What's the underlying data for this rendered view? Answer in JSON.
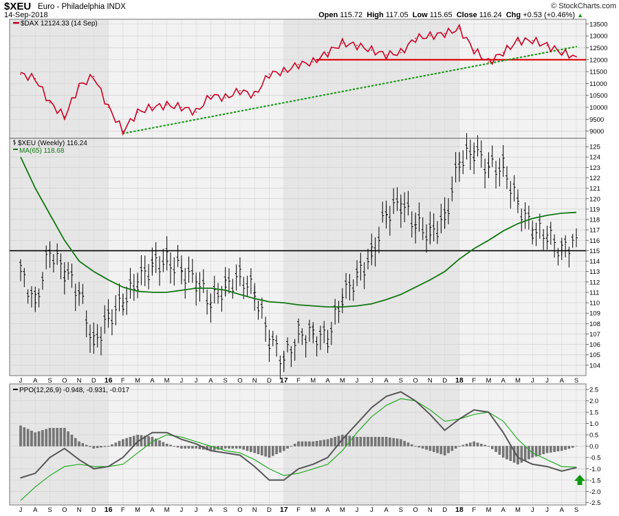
{
  "header": {
    "symbol": "$XEU",
    "name": "Euro - Philadelphia INDX",
    "date": "14-Sep-2018",
    "copyright": "© StockCharts.com",
    "open_label": "Open",
    "open": "115.72",
    "high_label": "High",
    "high": "117.05",
    "low_label": "Low",
    "low": "115.65",
    "close_label": "Close",
    "close": "116.24",
    "chg_label": "Chg",
    "chg": "+0.53 (+0.46%)",
    "chg_arrow": "▲"
  },
  "colors": {
    "dax_line": "#cc0022",
    "support_line": "#dd0000",
    "trend_dots": "#1a9a1a",
    "ma_line": "#117711",
    "price_bars": "#000000",
    "ppo_line": "#555555",
    "signal_line": "#22aa22",
    "histogram": "#777777",
    "arrow": "#119911",
    "panel_bg": "#f2f2f2",
    "shade_bg": "#e6e6e6"
  },
  "chart_data": [
    {
      "type": "line",
      "panel": "DAX",
      "legend": "$DAX 12124.33 (14 Sep)",
      "ylim": [
        8700,
        13700
      ],
      "yticks": [
        9000,
        9500,
        10000,
        10500,
        11000,
        11500,
        12000,
        12500,
        13000,
        13500
      ],
      "support_level": 12000,
      "trendline": {
        "from": [
          "Jan 2016",
          8900
        ],
        "to": [
          "Sep 2018",
          12550
        ],
        "style": "dotted"
      },
      "x": [
        "Jul 2015",
        "Aug 2015",
        "Sep 2015",
        "Oct 2015",
        "Nov 2015",
        "Dec 2015",
        "Jan 2016",
        "Feb 2016",
        "Mar 2016",
        "Apr 2016",
        "May 2016",
        "Jun 2016",
        "Jul 2016",
        "Aug 2016",
        "Sep 2016",
        "Oct 2016",
        "Nov 2016",
        "Dec 2016",
        "Jan 2017",
        "Feb 2017",
        "Mar 2017",
        "Apr 2017",
        "May 2017",
        "Jun 2017",
        "Jul 2017",
        "Aug 2017",
        "Sep 2017",
        "Oct 2017",
        "Nov 2017",
        "Dec 2017",
        "Jan 2018",
        "Feb 2018",
        "Mar 2018",
        "Apr 2018",
        "May 2018",
        "Jun 2018",
        "Jul 2018",
        "Aug 2018",
        "Sep 2018"
      ],
      "values": [
        11400,
        11200,
        10200,
        9600,
        10900,
        11300,
        10000,
        9000,
        9800,
        10000,
        10100,
        10000,
        9800,
        10500,
        10400,
        10700,
        10500,
        11400,
        11500,
        11800,
        11900,
        12300,
        12700,
        12600,
        12400,
        12200,
        12300,
        12900,
        13000,
        13100,
        13300,
        12400,
        11900,
        12300,
        12800,
        12800,
        12600,
        12300,
        12124
      ]
    },
    {
      "type": "bar",
      "panel": "XEU",
      "legend": "$XEU (Weekly) 116.24",
      "ma_legend": "MA(65) 118.68",
      "ylim": [
        103,
        125.8
      ],
      "yticks": [
        104,
        105,
        106,
        107,
        108,
        109,
        110,
        111,
        112,
        113,
        114,
        115,
        116,
        117,
        118,
        119,
        120,
        121,
        122,
        123,
        124,
        125
      ],
      "support_level": 115,
      "x": [
        "Jul 2015",
        "Aug 2015",
        "Sep 2015",
        "Oct 2015",
        "Nov 2015",
        "Dec 2015",
        "Jan 2016",
        "Feb 2016",
        "Mar 2016",
        "Apr 2016",
        "May 2016",
        "Jun 2016",
        "Jul 2016",
        "Aug 2016",
        "Sep 2016",
        "Oct 2016",
        "Nov 2016",
        "Dec 2016",
        "Jan 2017",
        "Feb 2017",
        "Mar 2017",
        "Apr 2017",
        "May 2017",
        "Jun 2017",
        "Jul 2017",
        "Aug 2017",
        "Sep 2017",
        "Oct 2017",
        "Nov 2017",
        "Dec 2017",
        "Jan 2018",
        "Feb 2018",
        "Mar 2018",
        "Apr 2018",
        "May 2018",
        "Jun 2018",
        "Jul 2018",
        "Aug 2018",
        "Sep 2018"
      ],
      "values": [
        113,
        110,
        115,
        113,
        111,
        106,
        108.5,
        110,
        112,
        113.5,
        114,
        113,
        112,
        110,
        111.5,
        112.5,
        111,
        106.5,
        104.5,
        107,
        107,
        106.5,
        110.5,
        112.5,
        114.5,
        118.5,
        119.5,
        117.5,
        116.5,
        118,
        123.5,
        124.5,
        123,
        123,
        119.5,
        117,
        116.5,
        115,
        116.24
      ],
      "ma_values": [
        124,
        121,
        118.5,
        116,
        114,
        113,
        112.2,
        111.5,
        111.1,
        111,
        111,
        111.2,
        111.4,
        111.4,
        111.2,
        110.8,
        110.4,
        110.1,
        110,
        109.8,
        109.7,
        109.6,
        109.6,
        109.7,
        109.9,
        110.3,
        110.8,
        111.5,
        112.2,
        113,
        114.2,
        115.2,
        116,
        116.9,
        117.6,
        118.1,
        118.4,
        118.6,
        118.68
      ]
    },
    {
      "type": "line",
      "panel": "PPO",
      "legend": "PPO(12,26,9) -0.948, -0.931, -0.017",
      "ylim": [
        -2.6,
        2.75
      ],
      "yticks": [
        -2.5,
        -2.0,
        -1.5,
        -1.0,
        -0.5,
        0.0,
        0.5,
        1.0,
        1.5,
        2.0,
        2.5
      ],
      "x": [
        "Jul 2015",
        "Aug 2015",
        "Sep 2015",
        "Oct 2015",
        "Nov 2015",
        "Dec 2015",
        "Jan 2016",
        "Feb 2016",
        "Mar 2016",
        "Apr 2016",
        "May 2016",
        "Jun 2016",
        "Jul 2016",
        "Aug 2016",
        "Sep 2016",
        "Oct 2016",
        "Nov 2016",
        "Dec 2016",
        "Jan 2017",
        "Feb 2017",
        "Mar 2017",
        "Apr 2017",
        "May 2017",
        "Jun 2017",
        "Jul 2017",
        "Aug 2017",
        "Sep 2017",
        "Oct 2017",
        "Nov 2017",
        "Dec 2017",
        "Jan 2018",
        "Feb 2018",
        "Mar 2018",
        "Apr 2018",
        "May 2018",
        "Jun 2018",
        "Jul 2018",
        "Aug 2018",
        "Sep 2018"
      ],
      "series": [
        {
          "name": "PPO",
          "values": [
            -1.4,
            -1.2,
            -0.5,
            -0.1,
            -0.6,
            -1.0,
            -0.9,
            -0.5,
            0.2,
            0.6,
            0.6,
            0.3,
            0.1,
            -0.2,
            -0.3,
            -0.4,
            -0.9,
            -1.5,
            -1.5,
            -1.0,
            -0.8,
            -0.5,
            0.3,
            1.0,
            1.7,
            2.2,
            2.4,
            2.0,
            1.4,
            0.7,
            1.2,
            1.6,
            1.5,
            0.6,
            -0.5,
            -0.8,
            -0.9,
            -1.1,
            -0.948
          ]
        },
        {
          "name": "Signal",
          "values": [
            -2.4,
            -1.8,
            -1.3,
            -0.9,
            -0.8,
            -0.9,
            -0.9,
            -0.8,
            -0.3,
            0.2,
            0.5,
            0.4,
            0.2,
            0.0,
            -0.2,
            -0.3,
            -0.6,
            -1.0,
            -1.3,
            -1.2,
            -1.0,
            -0.8,
            -0.2,
            0.6,
            1.3,
            1.8,
            2.1,
            2.0,
            1.6,
            1.1,
            1.2,
            1.4,
            1.5,
            1.1,
            0.3,
            -0.3,
            -0.6,
            -0.9,
            -0.931
          ]
        },
        {
          "name": "Histogram",
          "values": [
            0.9,
            0.6,
            0.8,
            0.8,
            0.2,
            -0.1,
            0.0,
            0.3,
            0.5,
            0.4,
            0.1,
            -0.1,
            -0.1,
            -0.2,
            -0.1,
            -0.1,
            -0.3,
            -0.5,
            -0.2,
            0.2,
            0.2,
            0.3,
            0.5,
            0.4,
            0.4,
            0.4,
            0.3,
            0.0,
            -0.2,
            -0.4,
            0.0,
            0.2,
            0.0,
            -0.5,
            -0.8,
            -0.5,
            -0.3,
            -0.2,
            -0.017
          ]
        }
      ]
    }
  ],
  "x_axis": {
    "labels": [
      "J",
      "A",
      "S",
      "O",
      "N",
      "D",
      "16",
      "F",
      "M",
      "A",
      "M",
      "J",
      "J",
      "A",
      "S",
      "O",
      "N",
      "D",
      "17",
      "F",
      "M",
      "A",
      "M",
      "J",
      "J",
      "A",
      "S",
      "O",
      "N",
      "D",
      "18",
      "F",
      "M",
      "A",
      "M",
      "J",
      "J",
      "A",
      "S"
    ],
    "bold_labels": [
      "16",
      "17",
      "18"
    ]
  }
}
